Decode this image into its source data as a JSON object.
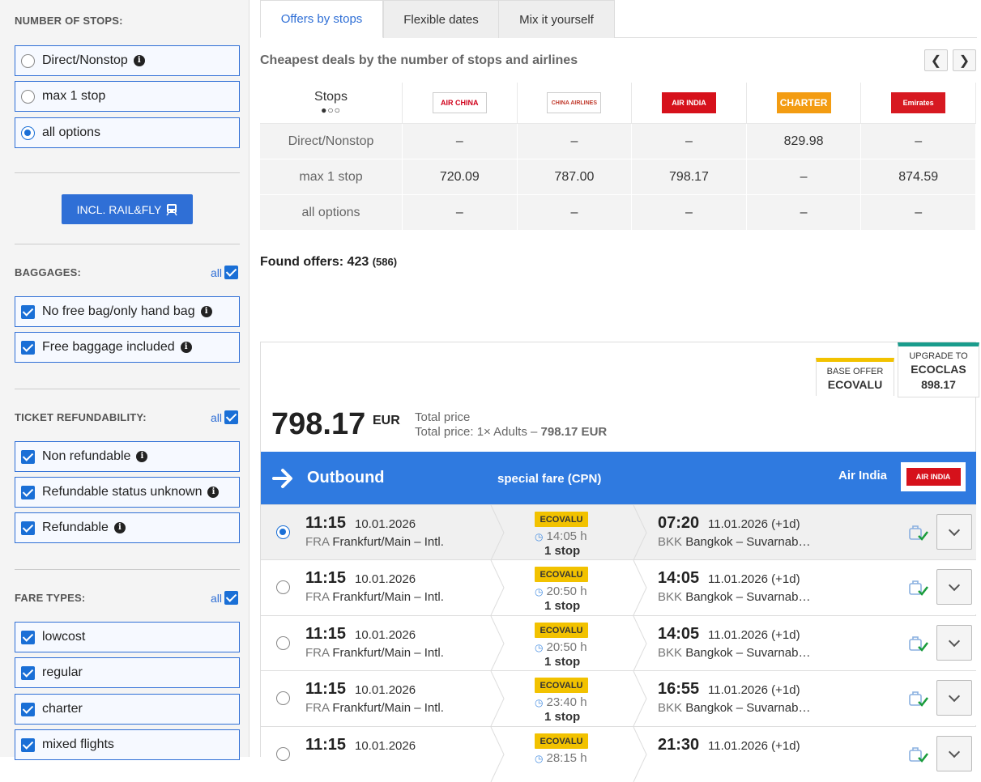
{
  "sidebar": {
    "stops": {
      "title": "NUMBER OF STOPS:",
      "options": [
        {
          "label": "Direct/Nonstop",
          "selected": false,
          "info": true
        },
        {
          "label": "max 1 stop",
          "selected": false,
          "info": false
        },
        {
          "label": "all options",
          "selected": true,
          "info": false
        }
      ]
    },
    "rail_button": "INCL. RAIL&FLY",
    "baggages": {
      "title": "BAGGAGES:",
      "all": "all",
      "options": [
        {
          "label": "No free bag/only hand bag",
          "checked": true
        },
        {
          "label": "Free baggage included",
          "checked": true
        }
      ]
    },
    "refund": {
      "title": "TICKET REFUNDABILITY:",
      "all": "all",
      "options": [
        {
          "label": "Non refundable",
          "checked": true
        },
        {
          "label": "Refundable status unknown",
          "checked": true
        },
        {
          "label": "Refundable",
          "checked": true
        }
      ]
    },
    "fare": {
      "title": "FARE TYPES:",
      "all": "all",
      "options": [
        {
          "label": "lowcost",
          "checked": true
        },
        {
          "label": "regular",
          "checked": true
        },
        {
          "label": "charter",
          "checked": true
        },
        {
          "label": "mixed flights",
          "checked": true
        }
      ]
    }
  },
  "tabs": [
    "Offers by stops",
    "Flexible dates",
    "Mix it yourself"
  ],
  "active_tab": 0,
  "deals_title": "Cheapest deals by the number of stops and airlines",
  "matrix": {
    "header": "Stops",
    "airlines": [
      {
        "name": "AIR CHINA",
        "bg": "#ffffff",
        "fg": "#d0021b"
      },
      {
        "name": "CHINA AIRLINES",
        "bg": "#ffffff",
        "fg": "#c0392b"
      },
      {
        "name": "AIR INDIA",
        "bg": "#d6111b",
        "fg": "#ffffff"
      },
      {
        "name": "CHARTER",
        "bg": "#f39c12",
        "fg": "#ffffff"
      },
      {
        "name": "Emirates",
        "bg": "#d71921",
        "fg": "#ffffff"
      }
    ],
    "rows": [
      {
        "label": "Direct/Nonstop",
        "values": [
          "–",
          "–",
          "–",
          "829.98",
          "–"
        ]
      },
      {
        "label": "max 1 stop",
        "values": [
          "720.09",
          "787.00",
          "798.17",
          "–",
          "874.59"
        ]
      },
      {
        "label": "all options",
        "values": [
          "–",
          "–",
          "–",
          "–",
          "–"
        ]
      }
    ]
  },
  "found": {
    "label": "Found offers:",
    "count": "423",
    "total": "(586)"
  },
  "offer": {
    "base_label": "BASE OFFER",
    "base_name": "ECOVALU",
    "upgrade_label": "UPGRADE TO",
    "upgrade_name": "ECOCLAS",
    "upgrade_price": "898.17",
    "price": "798.17",
    "currency": "EUR",
    "total_label": "Total price",
    "total_detail": "Total price: 1× Adults – ",
    "total_amount": "798.17 EUR",
    "direction": "Outbound",
    "fare_label": "special fare (CPN)",
    "airline": "Air India",
    "airline_logo": "AIR INDIA"
  },
  "flights": [
    {
      "dep_time": "11:15",
      "dep_date": "10.01.2026",
      "dep_code": "FRA",
      "dep_name": "Frankfurt/Main – Intl.",
      "fare": "ECOVALU",
      "duration": "14:05 h",
      "stops": "1 stop",
      "arr_time": "07:20",
      "arr_date": "11.01.2026 (+1d)",
      "arr_code": "BKK",
      "arr_name": "Bangkok – Suvarnab…",
      "selected": true
    },
    {
      "dep_time": "11:15",
      "dep_date": "10.01.2026",
      "dep_code": "FRA",
      "dep_name": "Frankfurt/Main – Intl.",
      "fare": "ECOVALU",
      "duration": "20:50 h",
      "stops": "1 stop",
      "arr_time": "14:05",
      "arr_date": "11.01.2026 (+1d)",
      "arr_code": "BKK",
      "arr_name": "Bangkok – Suvarnab…",
      "selected": false
    },
    {
      "dep_time": "11:15",
      "dep_date": "10.01.2026",
      "dep_code": "FRA",
      "dep_name": "Frankfurt/Main – Intl.",
      "fare": "ECOVALU",
      "duration": "20:50 h",
      "stops": "1 stop",
      "arr_time": "14:05",
      "arr_date": "11.01.2026 (+1d)",
      "arr_code": "BKK",
      "arr_name": "Bangkok – Suvarnab…",
      "selected": false
    },
    {
      "dep_time": "11:15",
      "dep_date": "10.01.2026",
      "dep_code": "FRA",
      "dep_name": "Frankfurt/Main – Intl.",
      "fare": "ECOVALU",
      "duration": "23:40 h",
      "stops": "1 stop",
      "arr_time": "16:55",
      "arr_date": "11.01.2026 (+1d)",
      "arr_code": "BKK",
      "arr_name": "Bangkok – Suvarnab…",
      "selected": false
    },
    {
      "dep_time": "11:15",
      "dep_date": "10.01.2026",
      "dep_code": "FRA",
      "dep_name": "",
      "fare": "ECOVALU",
      "duration": "28:15 h",
      "stops": "",
      "arr_time": "21:30",
      "arr_date": "11.01.2026 (+1d)",
      "arr_code": "",
      "arr_name": "",
      "selected": false
    }
  ],
  "colors": {
    "accent": "#2f6fd6",
    "outbound": "#2f7ae0",
    "fare_badge": "#f2c200",
    "upgrade": "#1a9c8c",
    "base": "#f2c200"
  }
}
